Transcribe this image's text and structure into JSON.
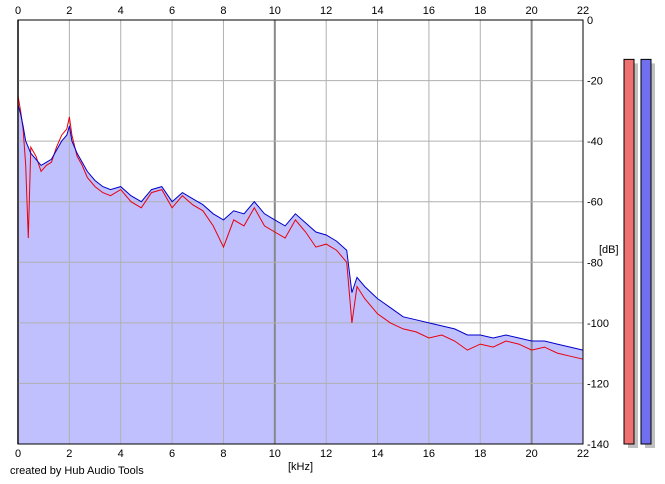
{
  "footer": {
    "credit": "created by Hub Audio Tools"
  },
  "chart_data": {
    "type": "line",
    "title": "",
    "xlabel": "[kHz]",
    "ylabel": "[dB]",
    "xlim": [
      0,
      22
    ],
    "ylim": [
      -140,
      0
    ],
    "x_ticks": [
      0,
      2,
      4,
      6,
      8,
      10,
      12,
      14,
      16,
      18,
      20,
      22
    ],
    "y_ticks": [
      0,
      -20,
      -40,
      -60,
      -80,
      -100,
      -120,
      -140
    ],
    "y_tick_labels": [
      "0",
      "-20",
      "-40",
      "-60",
      "-80",
      "-100",
      "-120",
      "-140"
    ],
    "grid": true,
    "legend": "none",
    "colors": {
      "left": "#e8000a",
      "right": "#0000c8",
      "fill": "#c0c0ff"
    },
    "series": [
      {
        "x": [
          0,
          0.1,
          0.2,
          0.3,
          0.4,
          0.5,
          0.7,
          0.9,
          1.1,
          1.3,
          1.5,
          1.7,
          1.9,
          2.0,
          2.1,
          2.3,
          2.5,
          2.7,
          3.0,
          3.3,
          3.6,
          4.0,
          4.4,
          4.8,
          5.2,
          5.6,
          6.0,
          6.4,
          6.8,
          7.2,
          7.6,
          8.0,
          8.4,
          8.8,
          9.2,
          9.6,
          10.0,
          10.4,
          10.8,
          11.2,
          11.6,
          12.0,
          12.4,
          12.8,
          13.0,
          13.2,
          13.5,
          14.0,
          14.5,
          15.0,
          15.5,
          16.0,
          16.5,
          17.0,
          17.5,
          18.0,
          18.5,
          19.0,
          19.5,
          20.0,
          20.5,
          21.0,
          21.5,
          22.0
        ],
        "values": [
          -25,
          -30,
          -36,
          -48,
          -72,
          -42,
          -45,
          -50,
          -48,
          -47,
          -42,
          -38,
          -36,
          -32,
          -38,
          -45,
          -48,
          -52,
          -55,
          -57,
          -58,
          -56,
          -60,
          -62,
          -57,
          -56,
          -62,
          -58,
          -61,
          -63,
          -68,
          -75,
          -66,
          -68,
          -62,
          -68,
          -70,
          -72,
          -66,
          -70,
          -75,
          -74,
          -76,
          -80,
          -100,
          -88,
          -92,
          -97,
          -100,
          -102,
          -103,
          -105,
          -104,
          -106,
          -109,
          -107,
          -108,
          -106,
          -107,
          -109,
          -108,
          -110,
          -111,
          -112
        ]
      },
      {
        "x": [
          0,
          0.1,
          0.2,
          0.3,
          0.4,
          0.5,
          0.7,
          0.9,
          1.1,
          1.3,
          1.5,
          1.7,
          1.9,
          2.0,
          2.1,
          2.3,
          2.5,
          2.7,
          3.0,
          3.3,
          3.6,
          4.0,
          4.4,
          4.8,
          5.2,
          5.6,
          6.0,
          6.4,
          6.8,
          7.2,
          7.6,
          8.0,
          8.4,
          8.8,
          9.2,
          9.6,
          10.0,
          10.4,
          10.8,
          11.2,
          11.6,
          12.0,
          12.4,
          12.8,
          13.0,
          13.2,
          13.5,
          14.0,
          14.5,
          15.0,
          15.5,
          16.0,
          16.5,
          17.0,
          17.5,
          18.0,
          18.5,
          19.0,
          19.5,
          20.0,
          20.5,
          21.0,
          21.5,
          22.0
        ],
        "values": [
          -28,
          -31,
          -35,
          -40,
          -42,
          -44,
          -46,
          -48,
          -47,
          -46,
          -43,
          -40,
          -38,
          -35,
          -40,
          -44,
          -47,
          -50,
          -53,
          -55,
          -56,
          -55,
          -58,
          -60,
          -56,
          -55,
          -60,
          -57,
          -59,
          -61,
          -64,
          -66,
          -63,
          -64,
          -60,
          -64,
          -66,
          -68,
          -64,
          -67,
          -70,
          -71,
          -73,
          -76,
          -90,
          -85,
          -88,
          -92,
          -95,
          -98,
          -99,
          -100,
          -101,
          -102,
          -104,
          -104,
          -105,
          -104,
          -105,
          -106,
          -106,
          -107,
          -108,
          -109
        ]
      }
    ],
    "meters": {
      "left_level_db": -13,
      "right_level_db": -13,
      "scale_db": [
        0,
        -140
      ]
    }
  }
}
